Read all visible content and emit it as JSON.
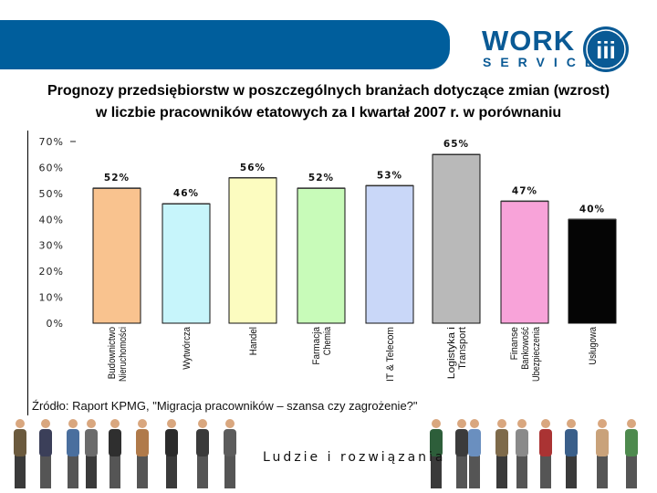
{
  "header": {
    "logo_word": "WORK",
    "logo_sub": "SERVICE",
    "logo_mark": "iii",
    "brand_color": "#005e9c"
  },
  "title": {
    "line1": "Prognozy przedsiębiorstw w poszczególnych branżach dotyczące zmian (wzrost)",
    "line2": "w liczbie pracowników etatowych za I kwartał 2007 r. w porównaniu"
  },
  "chart_data": {
    "type": "bar",
    "categories": [
      [
        "Budownictwo",
        "Nieruchomości"
      ],
      [
        "Wytwórcza"
      ],
      [
        "Handel"
      ],
      [
        "Farmacja",
        "Chemia"
      ],
      [
        "IT & Telecom"
      ],
      [
        "Logistyka i",
        "Transport"
      ],
      [
        "Finanse",
        "Bankowość",
        "Ubezpieczenia"
      ],
      [
        "Usługowa"
      ]
    ],
    "values": [
      52,
      46,
      56,
      52,
      53,
      65,
      47,
      40
    ],
    "value_labels": [
      "52%",
      "46%",
      "56%",
      "52%",
      "53%",
      "65%",
      "47%",
      "40%"
    ],
    "colors": [
      "#f9c38f",
      "#c7f5fb",
      "#fcfcc0",
      "#c8fbb9",
      "#c9d7f8",
      "#b9b9b9",
      "#f8a3d9",
      "#050505"
    ],
    "yticks": [
      "0%",
      "10%",
      "20%",
      "30%",
      "40%",
      "50%",
      "60%",
      "70%"
    ],
    "ylim": [
      0,
      70
    ]
  },
  "source": "Źródło: Raport KPMG, \"Migracja pracowników – szansa czy zagrożenie?\"",
  "footer": {
    "tagline": "Ludzie i rozwiązania"
  }
}
